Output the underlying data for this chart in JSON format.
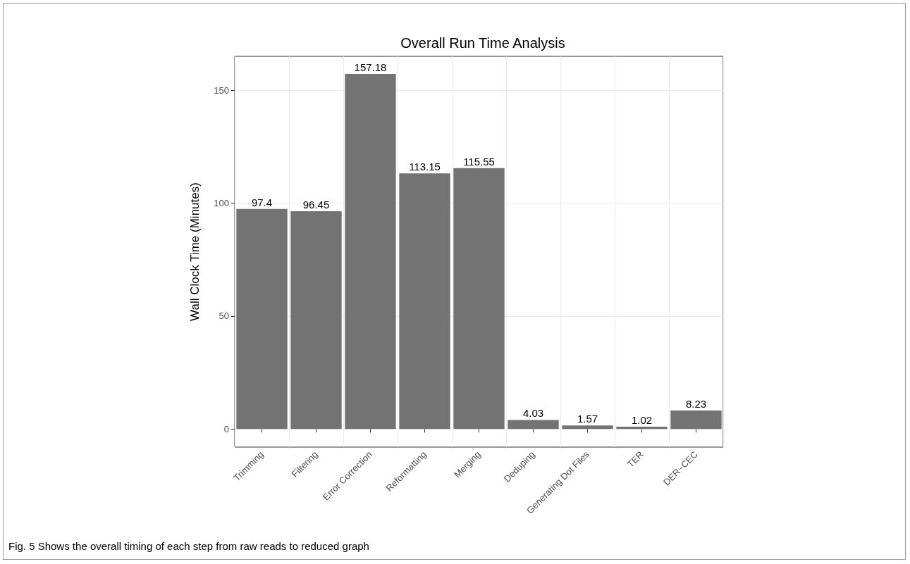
{
  "chart_data": {
    "type": "bar",
    "title": "Overall Run Time Analysis",
    "ylabel": "Wall Clock Time (Minutes)",
    "categories": [
      "Trimming",
      "Filtering",
      "Error Correction",
      "Reformatting",
      "Merging",
      "Deduping",
      "Generating Dot Files",
      "TER",
      "DER−CEC"
    ],
    "values": [
      97.4,
      96.45,
      157.18,
      113.15,
      115.55,
      4.03,
      1.57,
      1.02,
      8.23
    ],
    "color": "#737373",
    "ylim": [
      -8,
      165
    ],
    "yticks": [
      0,
      50,
      100,
      150
    ],
    "grid": true,
    "data_labels": true,
    "annotations": [
      "Fig. 5 Shows the overall timing of each step from raw reads to reduced graph"
    ]
  }
}
